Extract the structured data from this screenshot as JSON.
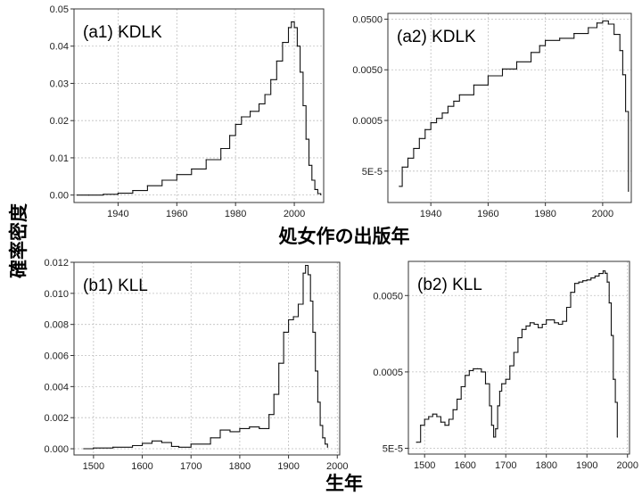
{
  "titles": {
    "x_top": "処女作の出版年",
    "x_bottom": "生年",
    "y": "確率密度"
  },
  "chart_data": [
    {
      "id": "a1",
      "type": "line",
      "title": "(a1) KDLK",
      "xlim": [
        1925,
        2010
      ],
      "ylim": [
        -0.002,
        0.05
      ],
      "yscale": "linear",
      "xticks": [
        1940,
        1960,
        1980,
        2000
      ],
      "yticks": [
        0.0,
        0.01,
        0.02,
        0.03,
        0.04,
        0.05
      ],
      "ytick_labels": [
        "0.00",
        "0.01",
        "0.02",
        "0.03",
        "0.04",
        "0.05"
      ],
      "grid": true,
      "step": true,
      "x": [
        1926,
        1930,
        1935,
        1940,
        1945,
        1950,
        1955,
        1960,
        1965,
        1970,
        1975,
        1978,
        1980,
        1982,
        1985,
        1988,
        1990,
        1992,
        1994,
        1996,
        1998,
        1999,
        2000,
        2001,
        2002,
        2003,
        2004,
        2005,
        2006,
        2007,
        2008,
        2009
      ],
      "y": [
        0.0,
        0.0,
        0.0002,
        0.0005,
        0.0012,
        0.0025,
        0.004,
        0.0055,
        0.007,
        0.0095,
        0.0125,
        0.016,
        0.019,
        0.021,
        0.0225,
        0.0245,
        0.027,
        0.031,
        0.036,
        0.041,
        0.045,
        0.0465,
        0.045,
        0.04,
        0.033,
        0.024,
        0.015,
        0.008,
        0.004,
        0.0015,
        0.0004,
        0.0001
      ]
    },
    {
      "id": "a2",
      "type": "line",
      "title": "(a2) KDLK",
      "xlim": [
        1925,
        2010
      ],
      "ylim": [
        1.2e-05,
        0.065
      ],
      "yscale": "log",
      "xticks": [
        1940,
        1960,
        1980,
        2000
      ],
      "yticks": [
        5e-05,
        0.0005,
        0.005,
        0.05
      ],
      "ytick_labels": [
        "5E-5",
        "0.0005",
        "0.0050",
        "0.0500"
      ],
      "grid": true,
      "step": true,
      "x": [
        1929,
        1930,
        1932,
        1934,
        1936,
        1938,
        1940,
        1942,
        1944,
        1946,
        1948,
        1950,
        1955,
        1960,
        1965,
        1970,
        1975,
        1978,
        1980,
        1985,
        1990,
        1995,
        1998,
        2000,
        2002,
        2004,
        2006,
        2007,
        2008,
        2009
      ],
      "y": [
        2.5e-05,
        6e-05,
        9e-05,
        0.00014,
        0.00022,
        0.00033,
        0.00045,
        0.00055,
        0.0007,
        0.00095,
        0.0012,
        0.0016,
        0.0025,
        0.0038,
        0.0052,
        0.0072,
        0.011,
        0.015,
        0.019,
        0.021,
        0.026,
        0.034,
        0.042,
        0.046,
        0.04,
        0.025,
        0.012,
        0.004,
        0.00075,
        2e-05
      ]
    },
    {
      "id": "b1",
      "type": "line",
      "title": "(b1) KLL",
      "xlim": [
        1460,
        2005
      ],
      "ylim": [
        -0.0004,
        0.012
      ],
      "yscale": "linear",
      "xticks": [
        1500,
        1600,
        1700,
        1800,
        1900,
        2000
      ],
      "yticks": [
        0.0,
        0.002,
        0.004,
        0.006,
        0.008,
        0.01,
        0.012
      ],
      "ytick_labels": [
        "0.000",
        "0.002",
        "0.004",
        "0.006",
        "0.008",
        "0.010",
        "0.012"
      ],
      "grid": true,
      "step": true,
      "x": [
        1480,
        1500,
        1540,
        1580,
        1600,
        1620,
        1640,
        1660,
        1675,
        1700,
        1740,
        1760,
        1780,
        1800,
        1820,
        1840,
        1860,
        1870,
        1880,
        1890,
        1900,
        1910,
        1920,
        1930,
        1935,
        1940,
        1945,
        1950,
        1955,
        1960,
        1965,
        1970,
        1975,
        1980
      ],
      "y": [
        0.0,
        5e-05,
        0.0001,
        0.0002,
        0.00035,
        0.0005,
        0.0004,
        0.00015,
        0.0001,
        0.0003,
        0.0007,
        0.0012,
        0.0011,
        0.0013,
        0.0014,
        0.0013,
        0.0022,
        0.0035,
        0.0055,
        0.0075,
        0.0083,
        0.0085,
        0.0093,
        0.0113,
        0.0118,
        0.0112,
        0.0095,
        0.0075,
        0.005,
        0.003,
        0.0015,
        0.0007,
        0.0003,
        0.0001
      ]
    },
    {
      "id": "b2",
      "type": "line",
      "title": "(b2) KLL",
      "xlim": [
        1460,
        2005
      ],
      "ylim": [
        4.2e-05,
        0.014
      ],
      "yscale": "log",
      "xticks": [
        1500,
        1600,
        1700,
        1800,
        1900,
        2000
      ],
      "yticks": [
        5e-05,
        0.0005,
        0.005
      ],
      "ytick_labels": [
        "5E-5",
        "0.0005",
        "0.0050"
      ],
      "grid": true,
      "step": true,
      "x": [
        1480,
        1490,
        1500,
        1510,
        1520,
        1530,
        1540,
        1550,
        1560,
        1570,
        1580,
        1590,
        1600,
        1610,
        1620,
        1630,
        1640,
        1650,
        1660,
        1665,
        1670,
        1675,
        1680,
        1685,
        1690,
        1700,
        1710,
        1720,
        1730,
        1740,
        1750,
        1760,
        1770,
        1780,
        1790,
        1800,
        1810,
        1820,
        1830,
        1840,
        1850,
        1860,
        1870,
        1880,
        1890,
        1900,
        1910,
        1920,
        1930,
        1940,
        1945,
        1950,
        1955,
        1960,
        1965,
        1970,
        1975
      ],
      "y": [
        6e-05,
        0.0001,
        0.00012,
        0.00013,
        0.00014,
        0.00013,
        0.00011,
        0.0001,
        0.00012,
        0.00016,
        0.00022,
        0.00032,
        0.00045,
        0.00052,
        0.00055,
        0.00055,
        0.0005,
        0.00035,
        0.00018,
        0.0001,
        7e-05,
        9e-05,
        0.00018,
        0.00028,
        0.00035,
        0.0004,
        0.0006,
        0.0009,
        0.0014,
        0.0018,
        0.002,
        0.0022,
        0.0021,
        0.0019,
        0.0021,
        0.0024,
        0.0024,
        0.0022,
        0.0021,
        0.0023,
        0.0035,
        0.0055,
        0.0072,
        0.0075,
        0.0078,
        0.008,
        0.0085,
        0.009,
        0.0097,
        0.0105,
        0.0098,
        0.0075,
        0.004,
        0.0015,
        0.0004,
        0.0002,
        7e-05
      ]
    }
  ]
}
